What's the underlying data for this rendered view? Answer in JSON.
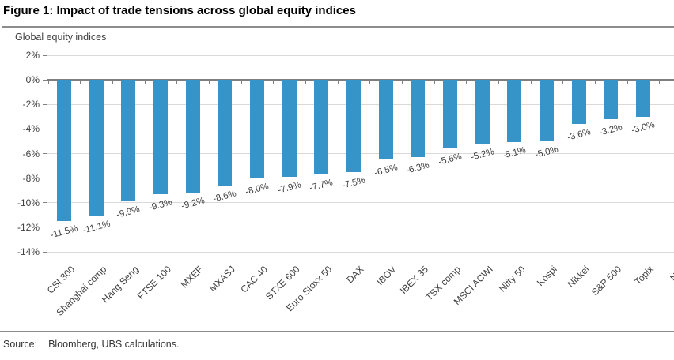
{
  "figure": {
    "title": "Figure 1: Impact of trade tensions across global equity indices",
    "source_label": "Source:",
    "source_text": "Bloomberg, UBS calculations."
  },
  "chart_data": {
    "type": "bar",
    "title": "Figure 1: Impact of trade tensions across global equity indices",
    "axis_title": "Global equity indices",
    "categories": [
      "CSI 300",
      "Shanghai comp",
      "Hang Seng",
      "FTSE 100",
      "MXEF",
      "MXASJ",
      "CAC 40",
      "STXE 600",
      "Euro Stoxx 50",
      "DAX",
      "IBOV",
      "IBEX 35",
      "TSX comp",
      "MSCI ACWI",
      "Nifty 50",
      "Kospi",
      "Nikkei",
      "S&P 500",
      "Topix",
      "Nas"
    ],
    "values": [
      -11.5,
      -11.1,
      -9.9,
      -9.3,
      -9.2,
      -8.6,
      -8.0,
      -7.9,
      -7.7,
      -7.5,
      -6.5,
      -6.3,
      -5.6,
      -5.2,
      -5.1,
      -5.0,
      -3.6,
      -3.2,
      -3.0,
      null
    ],
    "value_labels": [
      "-11.5%",
      "-11.1%",
      "-9.9%",
      "-9.3%",
      "-9.2%",
      "-8.6%",
      "-8.0%",
      "-7.9%",
      "-7.7%",
      "-7.5%",
      "-6.5%",
      "-6.3%",
      "-5.6%",
      "-5.2%",
      "-5.1%",
      "-5.0%",
      "-3.6%",
      "-3.2%",
      "-3.0%",
      null
    ],
    "ytick_values": [
      2,
      0,
      -2,
      -4,
      -6,
      -8,
      -10,
      -12,
      -14
    ],
    "ytick_labels": [
      "2%",
      "0%",
      "-2%",
      "-4%",
      "-6%",
      "-8%",
      "-10%",
      "-12%",
      "-14%"
    ],
    "ylim": [
      -14,
      2
    ],
    "grid": true,
    "legend": "none",
    "bar_color": "#3794C8",
    "ylabel": "",
    "xlabel": ""
  }
}
